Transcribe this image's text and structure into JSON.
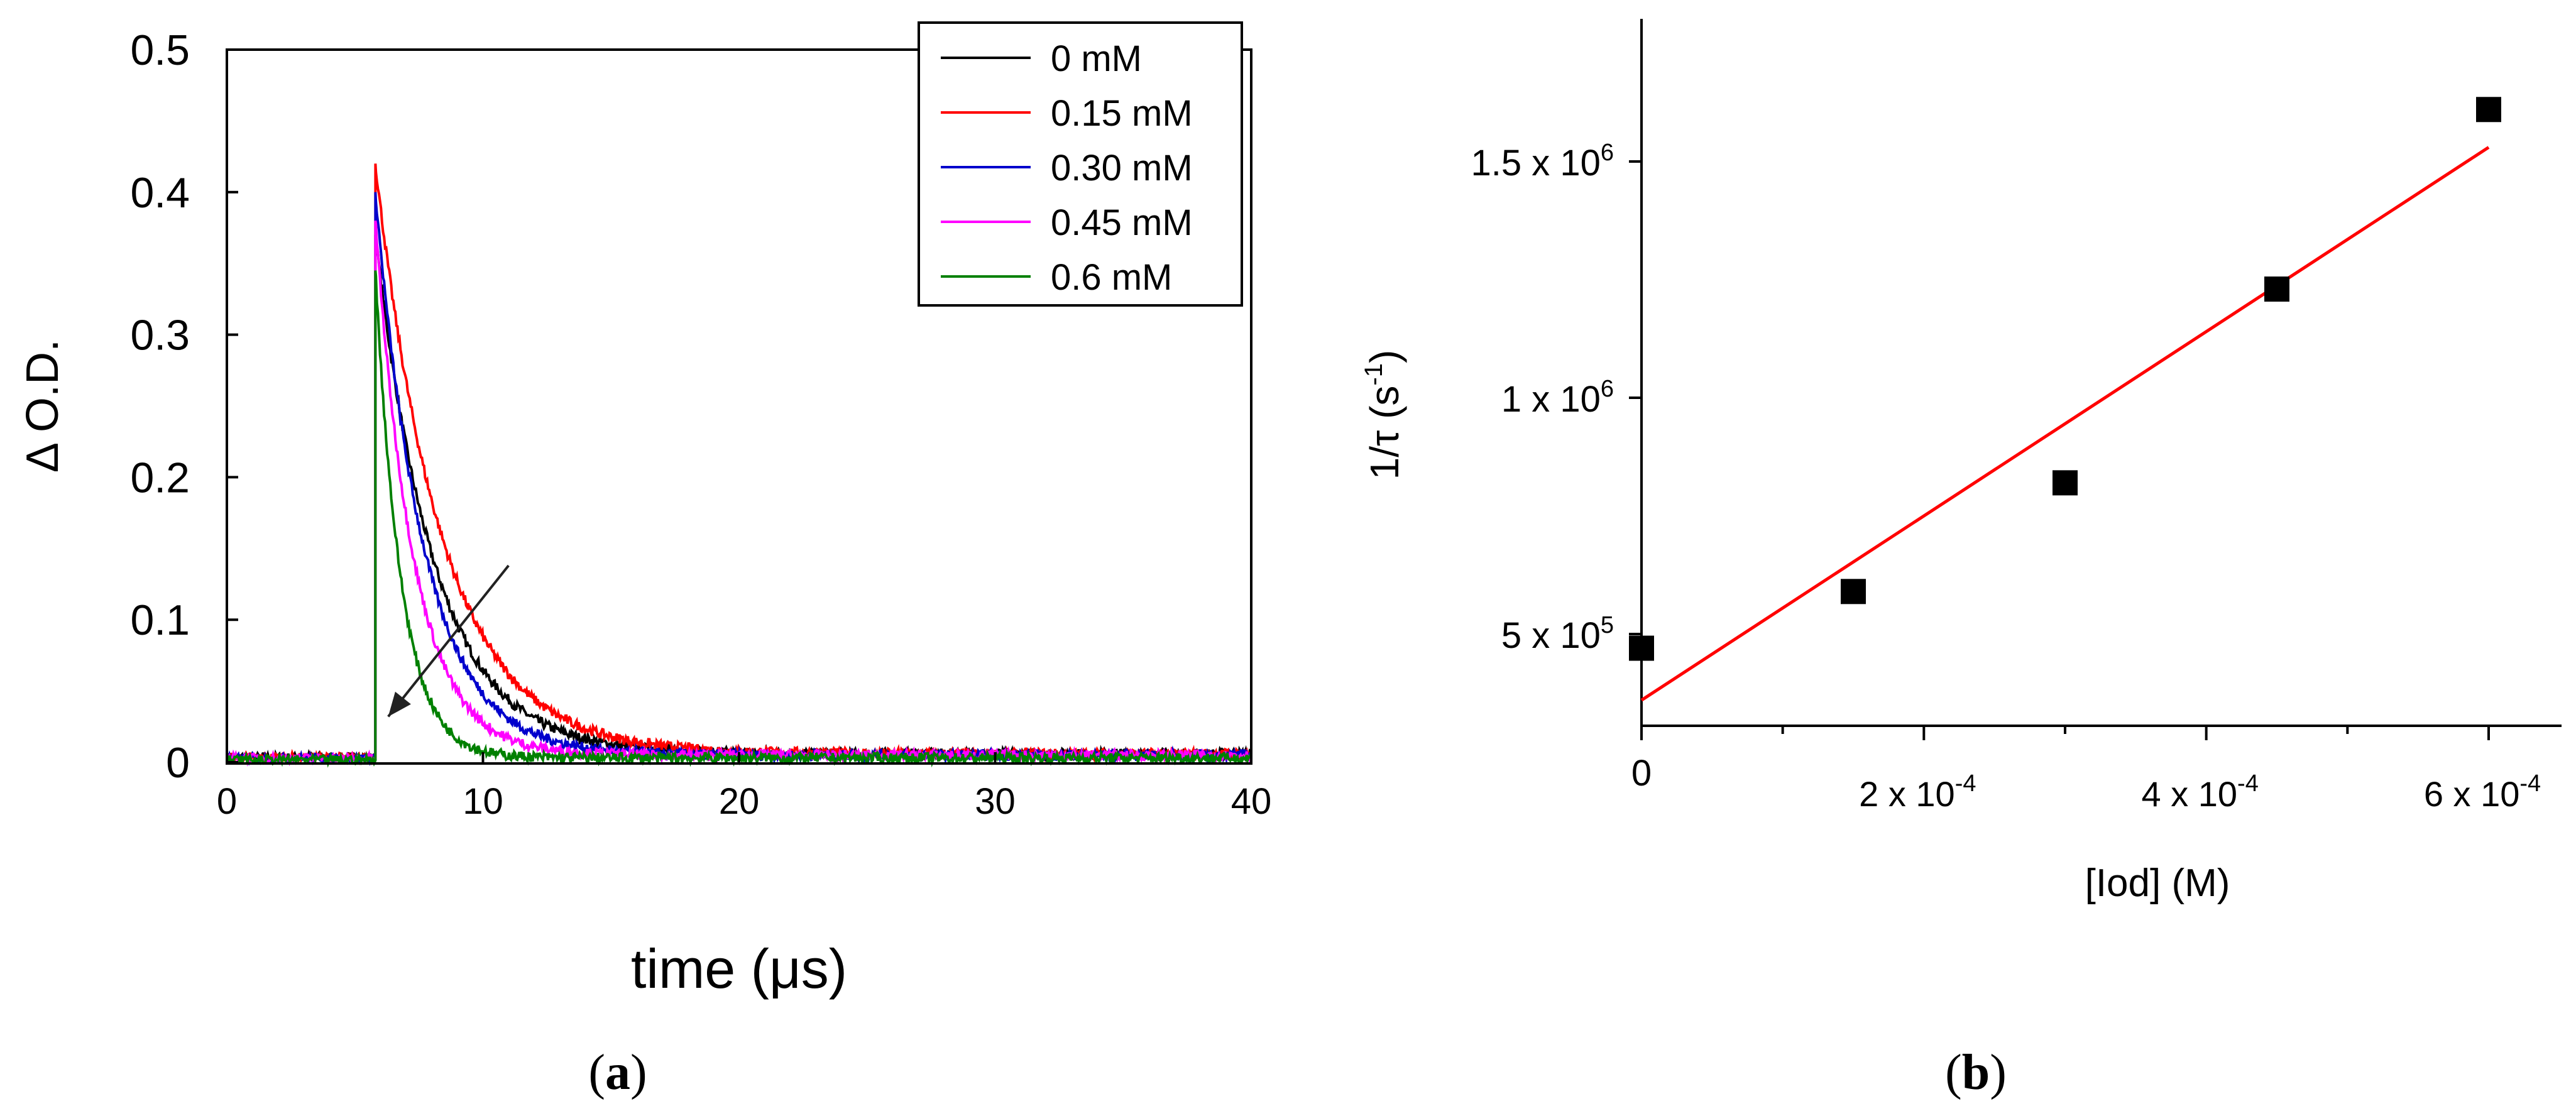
{
  "panel_a": {
    "caption": "a",
    "chart_data": {
      "type": "line",
      "xlabel": "time (μs)",
      "ylabel": "Δ O.D.",
      "xlim": [
        0,
        40
      ],
      "ylim": [
        0,
        0.5
      ],
      "xticks": [
        {
          "value": 0,
          "label": "0"
        },
        {
          "value": 10,
          "label": "10"
        },
        {
          "value": 20,
          "label": "20"
        },
        {
          "value": 30,
          "label": "30"
        },
        {
          "value": 40,
          "label": "40"
        }
      ],
      "yticks": [
        {
          "value": 0,
          "label": "0"
        },
        {
          "value": 0.1,
          "label": "0.1"
        },
        {
          "value": 0.2,
          "label": "0.2"
        },
        {
          "value": 0.3,
          "label": "0.3"
        },
        {
          "value": 0.4,
          "label": "0.4"
        },
        {
          "value": 0.5,
          "label": "0.5"
        }
      ],
      "grid": false,
      "legend": "top-right",
      "pulse_time": 5.8,
      "series": [
        {
          "name": "0 mM",
          "color": "#000000",
          "peak": 0.37,
          "baseline": 0.006,
          "tau": 2.3
        },
        {
          "name": "0.15 mM",
          "color": "#ff0000",
          "peak": 0.42,
          "baseline": 0.006,
          "tau": 2.6
        },
        {
          "name": "0.30 mM",
          "color": "#0000cc",
          "peak": 0.4,
          "baseline": 0.005,
          "tau": 1.9
        },
        {
          "name": "0.45 mM",
          "color": "#ff00ff",
          "peak": 0.38,
          "baseline": 0.005,
          "tau": 1.5
        },
        {
          "name": "0.6 mM",
          "color": "#008000",
          "peak": 0.345,
          "baseline": 0.003,
          "tau": 1.0
        }
      ],
      "annotation": {
        "type": "arrow",
        "from": [
          11.0,
          0.138
        ],
        "to": [
          6.3,
          0.032
        ]
      }
    }
  },
  "panel_b": {
    "caption": "b",
    "chart_data": {
      "type": "scatter",
      "xlabel": "[Iod] (M)",
      "ylabel_main": "1/τ (s",
      "ylabel_sup": "-1",
      "ylabel_end": ")",
      "xlim": [
        0,
        0.00065
      ],
      "ylim": [
        300000,
        1800000
      ],
      "xticks": [
        {
          "value": 0,
          "label": "0",
          "mant": "",
          "exp": ""
        },
        {
          "value": 0.0002,
          "label": "",
          "mant": "2 x 10",
          "exp": "-4"
        },
        {
          "value": 0.0004,
          "label": "",
          "mant": "4 x 10",
          "exp": "-4"
        },
        {
          "value": 0.0006,
          "label": "",
          "mant": "6 x 10",
          "exp": "-4"
        }
      ],
      "xminor": [
        0.0001,
        0.0003,
        0.0005
      ],
      "yticks": [
        {
          "value": 500000,
          "mant": "5 x 10",
          "exp": "5"
        },
        {
          "value": 1000000,
          "mant": "1 x 10",
          "exp": "6"
        },
        {
          "value": 1500000,
          "mant": "1.5 x 10",
          "exp": "6"
        }
      ],
      "grid": false,
      "points": {
        "x": [
          0,
          0.00015,
          0.0003,
          0.00045,
          0.0006
        ],
        "y": [
          470000,
          590000,
          820000,
          1230000,
          1610000
        ],
        "color": "#000000"
      },
      "fit_line": {
        "x": [
          0,
          0.0006
        ],
        "y": [
          360000,
          1530000
        ],
        "color": "#ff0000"
      }
    }
  }
}
